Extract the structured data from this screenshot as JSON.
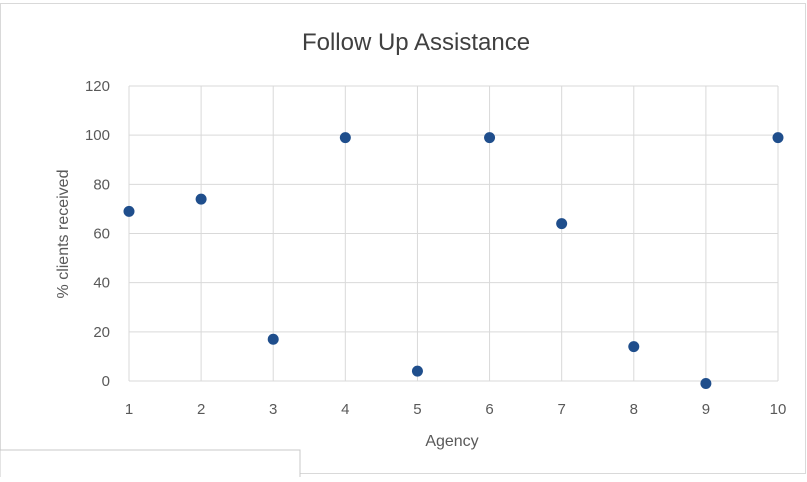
{
  "chart_data": {
    "type": "scatter",
    "title": "Follow Up Assistance",
    "xlabel": "Agency",
    "ylabel": "% clients received",
    "x": [
      1,
      2,
      3,
      4,
      5,
      6,
      7,
      8,
      9,
      10
    ],
    "y": [
      69,
      74,
      17,
      99,
      4,
      99,
      64,
      14,
      -1,
      99
    ],
    "xlim": [
      1,
      10
    ],
    "ylim": [
      0,
      120
    ],
    "xticks": [
      "1",
      "2",
      "3",
      "4",
      "5",
      "6",
      "7",
      "8",
      "9",
      "10"
    ],
    "yticks": [
      "0",
      "20",
      "40",
      "60",
      "80",
      "100",
      "120"
    ],
    "grid": true,
    "legend": "none",
    "colors": {
      "marker": "#1f4e8c",
      "grid": "#d9d9d9",
      "text": "#595959",
      "title": "#404040",
      "frame": "#d9d9d9"
    }
  }
}
